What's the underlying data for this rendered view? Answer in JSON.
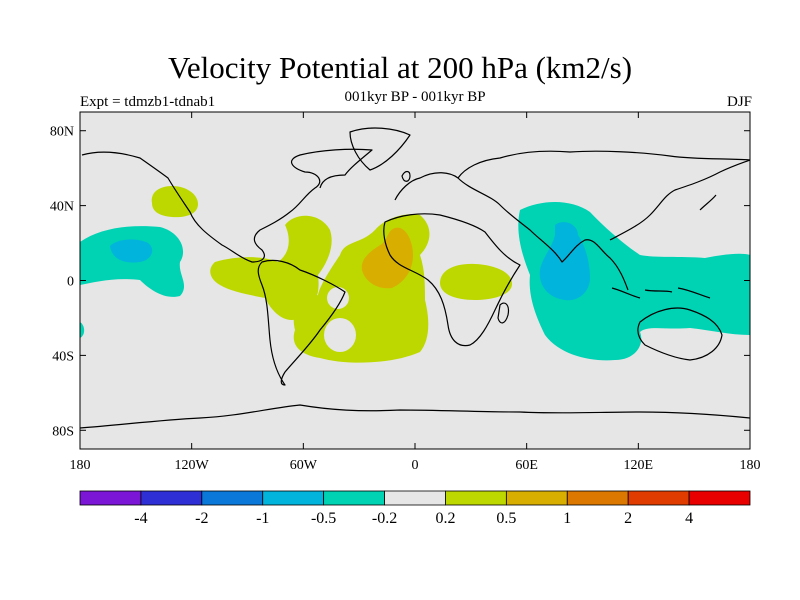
{
  "title": "Velocity Potential at 200 hPa (km2/s)",
  "subtitle_center": "001kyr BP - 001kyr BP",
  "subtitle_left": "Expt = tdmzb1-tdnab1",
  "subtitle_right": "DJF",
  "map": {
    "projection": "cylindrical equidistant",
    "lon_range": [
      -180,
      180
    ],
    "lat_range": [
      -90,
      90
    ],
    "background_color": "#e6e6e6",
    "x_ticks": [
      {
        "lon": -180,
        "label": "180"
      },
      {
        "lon": -120,
        "label": "120W"
      },
      {
        "lon": -60,
        "label": "60W"
      },
      {
        "lon": 0,
        "label": "0"
      },
      {
        "lon": 60,
        "label": "60E"
      },
      {
        "lon": 120,
        "label": "120E"
      },
      {
        "lon": 180,
        "label": "180"
      }
    ],
    "y_ticks": [
      {
        "lat": 80,
        "label": "80N"
      },
      {
        "lat": 40,
        "label": "40N"
      },
      {
        "lat": 0,
        "label": "0"
      },
      {
        "lat": -40,
        "label": "40S"
      },
      {
        "lat": -80,
        "label": "80S"
      }
    ]
  },
  "colorbar": {
    "colors": [
      "#7b16d6",
      "#2f2fd6",
      "#0a78d8",
      "#00b4dc",
      "#00d2b4",
      "#e6e6e6",
      "#bdd800",
      "#d8ae00",
      "#dc7800",
      "#e03c00",
      "#e80000"
    ],
    "labels": [
      "-4",
      "-2",
      "-1",
      "-0.5",
      "-0.2",
      "0.2",
      "0.5",
      "1",
      "2",
      "4"
    ]
  },
  "field_regions": [
    {
      "level": "0.2 to 0.5",
      "color": "#bdd800",
      "center": [
        -20,
        8
      ],
      "rx": 25,
      "ry": 35
    },
    {
      "level": "0.2 to 0.5",
      "color": "#bdd800",
      "center": [
        -65,
        0
      ],
      "rx": 25,
      "ry": 20
    },
    {
      "level": "0.2 to 0.5",
      "color": "#bdd800",
      "center": [
        -45,
        -20
      ],
      "rx": 20,
      "ry": 25
    },
    {
      "level": "0.2 to 0.5",
      "color": "#bdd800",
      "center": [
        -110,
        38
      ],
      "rx": 8,
      "ry": 6
    },
    {
      "level": "0.2 to 0.5",
      "color": "#bdd800",
      "center": [
        25,
        0
      ],
      "rx": 14,
      "ry": 9
    },
    {
      "level": "0.5 to 1",
      "color": "#d8ae00",
      "center": [
        -10,
        13
      ],
      "rx": 10,
      "ry": 14
    },
    {
      "level": "-0.2 to -0.5",
      "color": "#00d2b4",
      "center": [
        -150,
        14
      ],
      "rx": 20,
      "ry": 14
    },
    {
      "level": "-0.2 to -0.5",
      "color": "#00d2b4",
      "center": [
        75,
        8
      ],
      "rx": 25,
      "ry": 40
    },
    {
      "level": "-0.2 to -0.5",
      "color": "#00d2b4",
      "center": [
        140,
        -5
      ],
      "rx": 30,
      "ry": 16
    },
    {
      "level": "-0.5 to -1",
      "color": "#00b4dc",
      "center": [
        80,
        5
      ],
      "rx": 8,
      "ry": 12
    },
    {
      "level": "-0.5 to -1",
      "color": "#00b4dc",
      "center": [
        -150,
        16
      ],
      "rx": 8,
      "ry": 5
    }
  ]
}
